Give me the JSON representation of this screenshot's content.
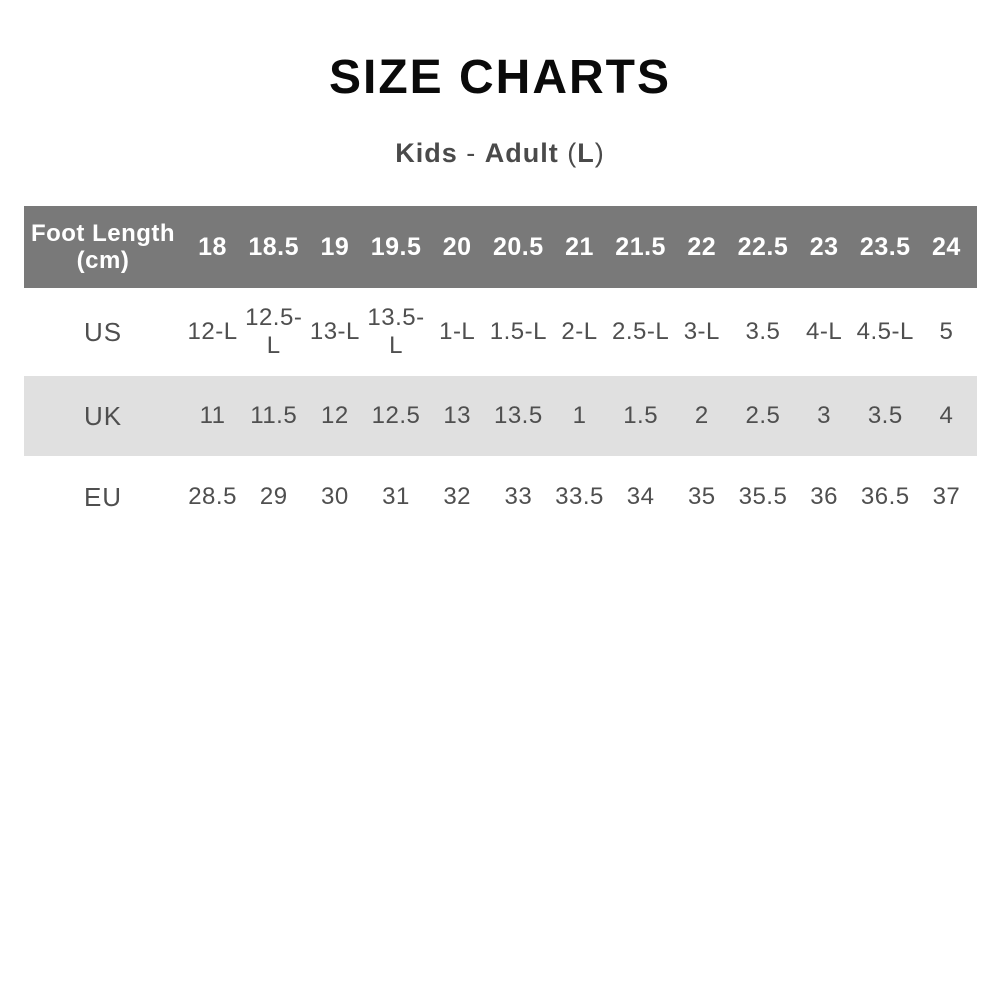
{
  "page": {
    "title": "SIZE CHARTS",
    "subtitle_parts": [
      {
        "text": "Kids",
        "bold": true
      },
      {
        "text": " - ",
        "bold": false
      },
      {
        "text": "Adult",
        "bold": true
      },
      {
        "text": " (",
        "bold": false
      },
      {
        "text": "L",
        "bold": true
      },
      {
        "text": ")",
        "bold": false
      }
    ]
  },
  "table": {
    "corner_label_lines": [
      "Foot Length",
      "(cm)"
    ],
    "size_columns": [
      "18",
      "18.5",
      "19",
      "19.5",
      "20",
      "20.5",
      "21",
      "21.5",
      "22",
      "22.5",
      "23",
      "23.5",
      "24"
    ],
    "rows": [
      {
        "label": "US",
        "shaded": false,
        "values": [
          "12-L",
          "12.5-L",
          "13-L",
          "13.5-L",
          "1-L",
          "1.5-L",
          "2-L",
          "2.5-L",
          "3-L",
          "3.5",
          "4-L",
          "4.5-L",
          "5"
        ]
      },
      {
        "label": "UK",
        "shaded": true,
        "values": [
          "11",
          "11.5",
          "12",
          "12.5",
          "13",
          "13.5",
          "1",
          "1.5",
          "2",
          "2.5",
          "3",
          "3.5",
          "4"
        ]
      },
      {
        "label": "EU",
        "shaded": false,
        "values": [
          "28.5",
          "29",
          "30",
          "31",
          "32",
          "33",
          "33.5",
          "34",
          "35",
          "35.5",
          "36",
          "36.5",
          "37"
        ]
      }
    ]
  },
  "colors": {
    "header_bg": "#797979",
    "header_text": "#ffffff",
    "shaded_row_bg": "#e0e0e0",
    "body_text": "#4f4f4f",
    "title_text": "#0a0a0a",
    "subtitle_text": "#4a4a4a"
  },
  "chart_data": {
    "type": "table",
    "title": "SIZE CHARTS",
    "subtitle": "Kids - Adult (L)",
    "columns": [
      "Foot Length (cm)",
      "18",
      "18.5",
      "19",
      "19.5",
      "20",
      "20.5",
      "21",
      "21.5",
      "22",
      "22.5",
      "23",
      "23.5",
      "24"
    ],
    "rows": [
      [
        "US",
        "12-L",
        "12.5-L",
        "13-L",
        "13.5-L",
        "1-L",
        "1.5-L",
        "2-L",
        "2.5-L",
        "3-L",
        "3.5",
        "4-L",
        "4.5-L",
        "5"
      ],
      [
        "UK",
        "11",
        "11.5",
        "12",
        "12.5",
        "13",
        "13.5",
        "1",
        "1.5",
        "2",
        "2.5",
        "3",
        "3.5",
        "4"
      ],
      [
        "EU",
        "28.5",
        "29",
        "30",
        "31",
        "32",
        "33",
        "33.5",
        "34",
        "35",
        "35.5",
        "36",
        "36.5",
        "37"
      ]
    ],
    "layout": {
      "shaded_rows": [
        "UK"
      ],
      "header_style": "dark-gray-band",
      "grid": false
    }
  }
}
